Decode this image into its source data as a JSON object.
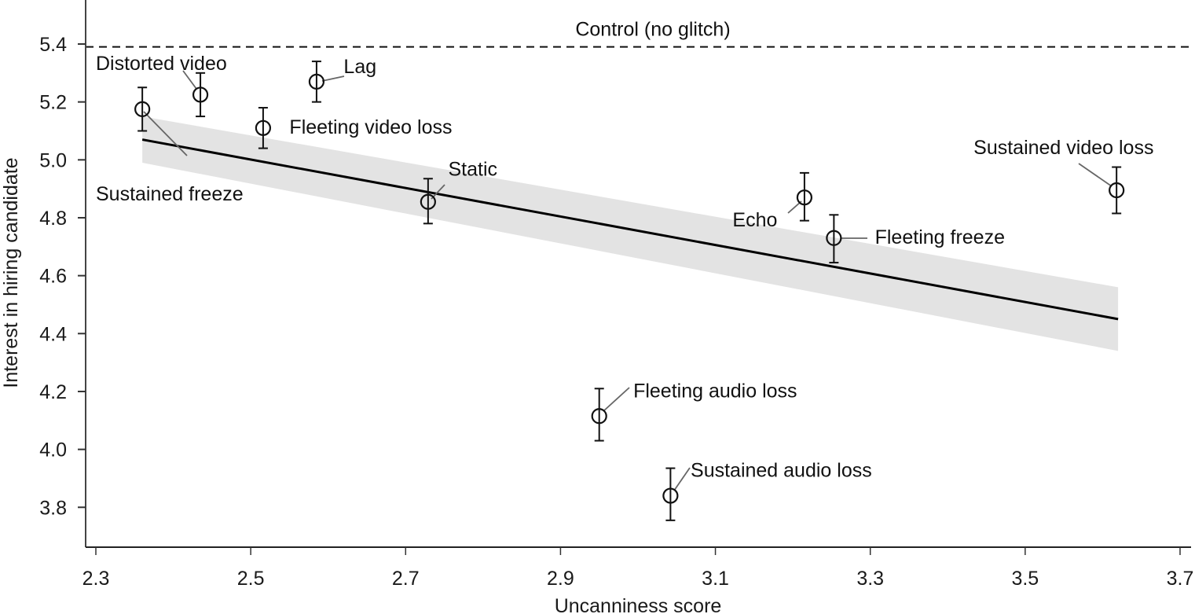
{
  "chart_data": {
    "type": "scatter",
    "title": "",
    "xlabel": "Uncanniness score",
    "ylabel": "Interest in hiring candidate",
    "xlim": [
      2.27,
      3.72
    ],
    "ylim": [
      3.66,
      5.55
    ],
    "xticks": [
      2.3,
      2.5,
      2.7,
      2.9,
      3.1,
      3.3,
      3.5,
      3.7
    ],
    "xtick_labels": [
      "2.3",
      "2.5",
      "2.7",
      "2.9",
      "3.1",
      "3.3",
      "3.5",
      "3.7"
    ],
    "yticks": [
      3.8,
      4.0,
      4.2,
      4.4,
      4.6,
      4.8,
      5.0,
      5.2,
      5.4
    ],
    "ytick_labels": [
      "3.8",
      "4.0",
      "4.2",
      "4.4",
      "4.6",
      "4.8",
      "5.0",
      "5.2",
      "5.4"
    ],
    "grid": false,
    "legend": null,
    "reference_line": {
      "label": "Control (no glitch)",
      "y": 5.39,
      "style": "dashed"
    },
    "regression": {
      "x": [
        2.36,
        3.62
      ],
      "y": [
        5.07,
        4.45
      ],
      "ci_lower": [
        4.99,
        4.34
      ],
      "ci_upper": [
        5.15,
        4.56
      ]
    },
    "points": [
      {
        "label": "Sustained freeze",
        "x": 2.36,
        "y": 5.175,
        "err_low": 5.1,
        "err_high": 5.25,
        "label_x": 2.3,
        "label_y": 4.86,
        "anchor": "start"
      },
      {
        "label": "Distorted video",
        "x": 2.435,
        "y": 5.225,
        "err_low": 5.15,
        "err_high": 5.3,
        "label_x": 2.3,
        "label_y": 5.31,
        "anchor": "start"
      },
      {
        "label": "Fleeting video loss",
        "x": 2.516,
        "y": 5.11,
        "err_low": 5.04,
        "err_high": 5.18,
        "label_x": 2.55,
        "label_y": 5.09,
        "anchor": "start"
      },
      {
        "label": "Lag",
        "x": 2.585,
        "y": 5.27,
        "err_low": 5.2,
        "err_high": 5.34,
        "label_x": 2.62,
        "label_y": 5.3,
        "anchor": "start"
      },
      {
        "label": "Static",
        "x": 2.729,
        "y": 4.855,
        "err_low": 4.78,
        "err_high": 4.935,
        "label_x": 2.755,
        "label_y": 4.945,
        "anchor": "start"
      },
      {
        "label": "Fleeting audio loss",
        "x": 2.95,
        "y": 4.115,
        "err_low": 4.03,
        "err_high": 4.21,
        "label_x": 2.994,
        "label_y": 4.18,
        "anchor": "start"
      },
      {
        "label": "Sustained audio loss",
        "x": 3.042,
        "y": 3.84,
        "err_low": 3.755,
        "err_high": 3.935,
        "label_x": 3.068,
        "label_y": 3.905,
        "anchor": "start"
      },
      {
        "label": "Echo",
        "x": 3.215,
        "y": 4.87,
        "err_low": 4.79,
        "err_high": 4.955,
        "label_x": 3.18,
        "label_y": 4.77,
        "anchor": "end"
      },
      {
        "label": "Fleeting freeze",
        "x": 3.253,
        "y": 4.73,
        "err_low": 4.645,
        "err_high": 4.81,
        "label_x": 3.306,
        "label_y": 4.71,
        "anchor": "start"
      },
      {
        "label": "Sustained video loss",
        "x": 3.618,
        "y": 4.895,
        "err_low": 4.815,
        "err_high": 4.975,
        "label_x": 3.666,
        "label_y": 5.02,
        "anchor": "end"
      }
    ]
  },
  "colors": {
    "points": "#111111",
    "regression": "#000000",
    "ci_band": "#e3e3e3",
    "leader_line": "#666666",
    "axis": "#333333"
  }
}
